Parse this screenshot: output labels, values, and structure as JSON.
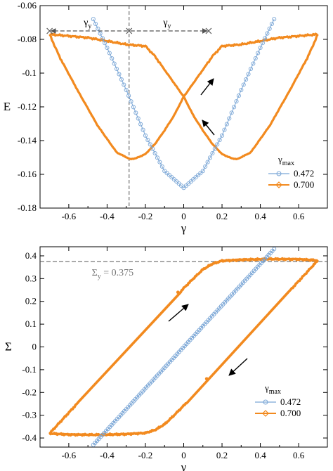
{
  "chart_data": [
    {
      "type": "line",
      "xlabel": "γ",
      "ylabel": "E",
      "xlim": [
        -0.75,
        0.75
      ],
      "ylim": [
        -0.18,
        -0.06
      ],
      "xticks": [
        -0.6,
        -0.4,
        -0.2,
        0,
        0.2,
        0.4,
        0.6
      ],
      "xtick_labels": [
        "-0.6",
        "-0.4",
        "-0.2",
        "0",
        "0.2",
        "0.4",
        "0.6"
      ],
      "yticks": [
        -0.18,
        -0.16,
        -0.14,
        -0.12,
        -0.1,
        -0.08,
        -0.06
      ],
      "ytick_labels": [
        "-0.18",
        "-0.16",
        "-0.14",
        "-0.12",
        "-0.1",
        "-0.08",
        "-0.06"
      ],
      "grid": false,
      "legend_title": "γ",
      "legend_title_sub": "max",
      "legend_position": "bottom-right",
      "annotation_gamma_symbol": "γ",
      "annotation_gamma_sub": "y",
      "annotation_gamma_y": -0.285,
      "series": [
        {
          "name": "0.472",
          "color": "#7aa6d6",
          "marker": "circle",
          "points": [
            [
              -0.472,
              -0.068
            ],
            [
              -0.4,
              -0.085
            ],
            [
              -0.3,
              -0.11
            ],
            [
              -0.2,
              -0.137
            ],
            [
              -0.1,
              -0.158
            ],
            [
              0,
              -0.168
            ],
            [
              0.1,
              -0.158
            ],
            [
              0.2,
              -0.137
            ],
            [
              0.3,
              -0.11
            ],
            [
              0.4,
              -0.085
            ],
            [
              0.472,
              -0.068
            ]
          ]
        },
        {
          "name": "0.700",
          "color": "#f28a1f",
          "marker": "diamond",
          "branches": [
            [
              [
                -0.7,
                -0.077
              ],
              [
                -0.6,
                -0.078
              ],
              [
                -0.5,
                -0.079
              ],
              [
                -0.4,
                -0.081
              ],
              [
                -0.3,
                -0.083
              ],
              [
                -0.2,
                -0.084
              ],
              [
                -0.15,
                -0.09
              ],
              [
                -0.1,
                -0.098
              ],
              [
                -0.05,
                -0.106
              ],
              [
                0,
                -0.114
              ],
              [
                0.05,
                -0.125
              ],
              [
                0.1,
                -0.134
              ],
              [
                0.15,
                -0.142
              ],
              [
                0.2,
                -0.148
              ],
              [
                0.25,
                -0.1505
              ],
              [
                0.28,
                -0.151
              ],
              [
                0.35,
                -0.147
              ],
              [
                0.45,
                -0.131
              ],
              [
                0.55,
                -0.111
              ],
              [
                0.65,
                -0.09
              ],
              [
                0.7,
                -0.077
              ]
            ],
            [
              [
                0.7,
                -0.077
              ],
              [
                0.6,
                -0.078
              ],
              [
                0.5,
                -0.079
              ],
              [
                0.4,
                -0.081
              ],
              [
                0.3,
                -0.083
              ],
              [
                0.2,
                -0.084
              ],
              [
                0.15,
                -0.09
              ],
              [
                0.1,
                -0.098
              ],
              [
                0.05,
                -0.106
              ],
              [
                0,
                -0.114
              ],
              [
                -0.05,
                -0.125
              ],
              [
                -0.1,
                -0.134
              ],
              [
                -0.15,
                -0.142
              ],
              [
                -0.2,
                -0.148
              ],
              [
                -0.25,
                -0.1505
              ],
              [
                -0.28,
                -0.151
              ],
              [
                -0.35,
                -0.147
              ],
              [
                -0.45,
                -0.131
              ],
              [
                -0.55,
                -0.111
              ],
              [
                -0.65,
                -0.09
              ],
              [
                -0.7,
                -0.077
              ]
            ]
          ]
        }
      ]
    },
    {
      "type": "line",
      "xlabel": "γ",
      "ylabel": "Σ",
      "xlim": [
        -0.75,
        0.75
      ],
      "ylim": [
        -0.44,
        0.44
      ],
      "xticks": [
        -0.6,
        -0.4,
        -0.2,
        0,
        0.2,
        0.4,
        0.6
      ],
      "xtick_labels": [
        "-0.6",
        "-0.4",
        "-0.2",
        "0",
        "0.2",
        "0.4",
        "0.6"
      ],
      "yticks": [
        -0.4,
        -0.3,
        -0.2,
        -0.1,
        0,
        0.1,
        0.2,
        0.3,
        0.4
      ],
      "ytick_labels": [
        "-0.4",
        "-0.3",
        "-0.2",
        "-0.1",
        "0",
        "0.1",
        "0.2",
        "0.3",
        "0.4"
      ],
      "grid": false,
      "legend_title": "γ",
      "legend_title_sub": "max",
      "legend_position": "bottom-right",
      "sigma_y_symbol": "Σ",
      "sigma_y_sub": "y",
      "sigma_y_text": " = 0.375",
      "sigma_y": 0.375,
      "series": [
        {
          "name": "0.472",
          "color": "#7aa6d6",
          "marker": "circle",
          "points": [
            [
              -0.472,
              -0.43
            ],
            [
              0.472,
              0.43
            ]
          ]
        },
        {
          "name": "0.700",
          "color": "#f28a1f",
          "marker": "diamond",
          "branches": [
            [
              [
                -0.7,
                -0.38
              ],
              [
                0.0,
                0.258
              ],
              [
                0.05,
                0.3
              ],
              [
                0.1,
                0.34
              ],
              [
                0.15,
                0.365
              ],
              [
                0.2,
                0.378
              ],
              [
                0.3,
                0.383
              ],
              [
                0.45,
                0.386
              ],
              [
                0.6,
                0.385
              ],
              [
                0.7,
                0.38
              ]
            ],
            [
              [
                0.7,
                0.38
              ],
              [
                0.0,
                -0.258
              ],
              [
                -0.05,
                -0.3
              ],
              [
                -0.1,
                -0.34
              ],
              [
                -0.15,
                -0.365
              ],
              [
                -0.2,
                -0.378
              ],
              [
                -0.3,
                -0.383
              ],
              [
                -0.45,
                -0.386
              ],
              [
                -0.6,
                -0.385
              ],
              [
                -0.7,
                -0.38
              ]
            ]
          ]
        }
      ]
    }
  ]
}
